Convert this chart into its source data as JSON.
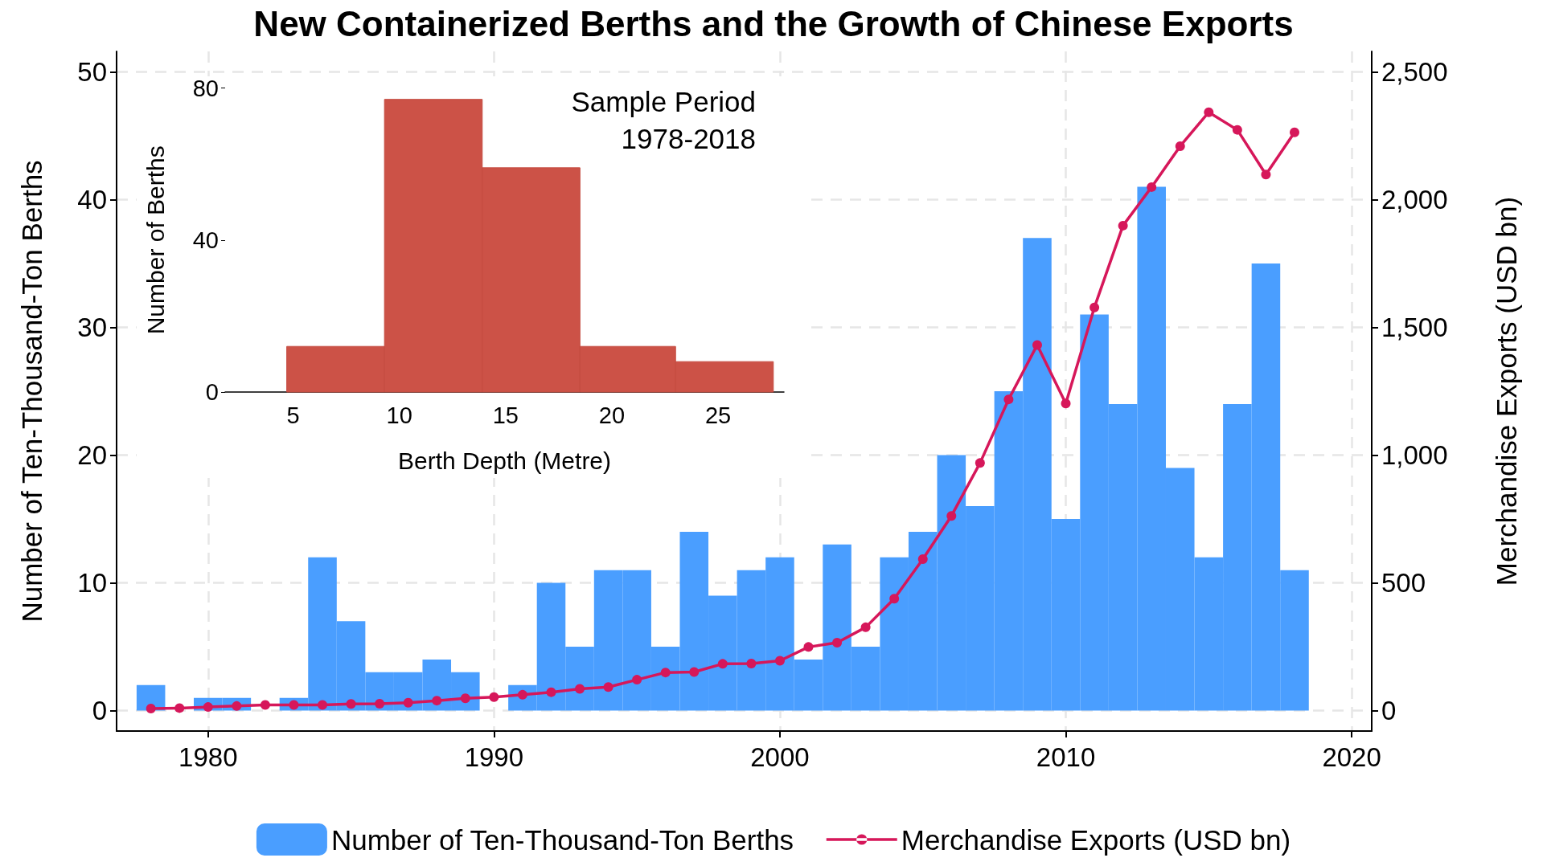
{
  "chart_data": [
    {
      "type": "bar",
      "title": "New Containerized Berths and the Growth of Chinese Exports",
      "ylabel": "Number of Ten-Thousand-Ton Berths",
      "y2label": "Merchandise Exports (USD bn)",
      "x": [
        1978,
        1979,
        1980,
        1981,
        1982,
        1983,
        1984,
        1985,
        1986,
        1987,
        1988,
        1989,
        1990,
        1991,
        1992,
        1993,
        1994,
        1995,
        1996,
        1997,
        1998,
        1999,
        2000,
        2001,
        2002,
        2003,
        2004,
        2005,
        2006,
        2007,
        2008,
        2009,
        2010,
        2011,
        2012,
        2013,
        2014,
        2015,
        2016,
        2017,
        2018
      ],
      "series": [
        {
          "name": "Number of Ten-Thousand-Ton Berths",
          "color": "#4a9eff",
          "values": [
            2,
            0,
            1,
            1,
            0,
            1,
            12,
            7,
            3,
            3,
            4,
            3,
            0,
            2,
            10,
            5,
            11,
            11,
            5,
            14,
            9,
            11,
            12,
            4,
            13,
            5,
            12,
            14,
            20,
            16,
            25,
            37,
            15,
            31,
            24,
            41,
            19,
            12,
            24,
            35,
            11
          ]
        },
        {
          "name": "Merchandise Exports (USD bn)",
          "type": "line",
          "axis": "y2",
          "color": "#d6175a",
          "values": [
            8,
            10,
            14,
            18,
            22,
            22,
            22,
            26,
            27,
            31,
            39,
            48,
            53,
            62,
            72,
            85,
            92,
            121,
            149,
            151,
            183,
            184,
            195,
            249,
            266,
            326,
            438,
            593,
            762,
            969,
            1218,
            1431,
            1202,
            1578,
            1898,
            2049,
            2209,
            2342,
            2273,
            2098,
            2263
          ]
        }
      ],
      "xlim": [
        1976.8,
        2020.7
      ],
      "xticks": [
        1980,
        1990,
        2000,
        2010,
        2020
      ],
      "ylim": [
        -1.6,
        51.6
      ],
      "yticks": [
        0,
        10,
        20,
        30,
        40,
        50
      ],
      "y2lim": [
        -80,
        2580
      ],
      "y2ticks": [
        0,
        500,
        {
          "value": 1000,
          "label": "1,000"
        },
        {
          "value": 1500,
          "label": "1,500"
        },
        {
          "value": 2000,
          "label": "2,000"
        },
        {
          "value": 2500,
          "label": "2,500"
        }
      ],
      "grid": true,
      "legend": "bottom",
      "marker": "circle"
    },
    {
      "type": "histogram",
      "xlabel": "Berth Depth (Metre)",
      "ylabel": "Number of Berths",
      "color": "#cc5247",
      "bins": [
        4.7,
        9.3,
        13.9,
        18.5,
        23.0,
        27.6
      ],
      "values": [
        12,
        77,
        59,
        12,
        8
      ],
      "xlim": [
        1.8,
        28.1
      ],
      "xticks": [
        5,
        10,
        15,
        20,
        25
      ],
      "ylim": [
        0,
        80
      ],
      "yticks": [
        0,
        40,
        80
      ],
      "annotations": [
        "Sample Period\n1978-2018"
      ]
    }
  ]
}
